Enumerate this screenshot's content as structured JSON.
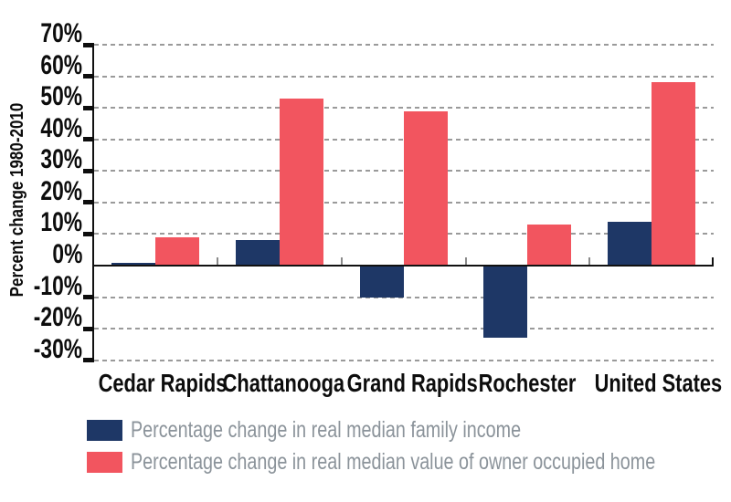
{
  "chart_data": {
    "type": "bar",
    "title": "",
    "categories": [
      "Cedar Rapids",
      "Chattanooga",
      "Grand Rapids",
      "Rochester",
      "United States"
    ],
    "series": [
      {
        "name": "Percentage change in real median family income",
        "color": "#1e3766",
        "values": [
          1,
          8,
          -10,
          -23,
          14
        ]
      },
      {
        "name": "Percentage change in real median value of owner occupied home",
        "color": "#f2555f",
        "values": [
          9,
          53,
          49,
          13,
          58
        ]
      }
    ],
    "xlabel": "",
    "ylabel": "Percent change 1980-2010",
    "ylim": [
      -30,
      70
    ],
    "ytick_step": 10,
    "ytick_labels": [
      "70%",
      "60%",
      "50%",
      "40%",
      "30%",
      "20%",
      "10%",
      "0%",
      "-10%",
      "-20%",
      "-30%"
    ],
    "grid": "horizontal-dashed",
    "legend_position": "bottom-left"
  },
  "colors": {
    "axis": "#111111",
    "tick_label": "#0d0d0d",
    "gridline": "#9a9a9a",
    "category_divider": "#8a8a8a",
    "legend_text": "#8b939a",
    "background": "#ffffff"
  }
}
